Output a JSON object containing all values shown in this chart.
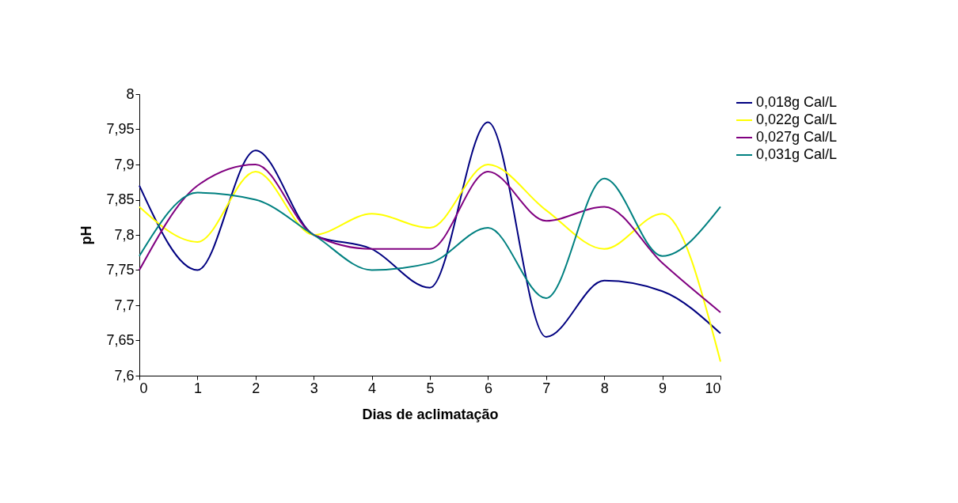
{
  "chart_data": {
    "type": "line",
    "xlabel": "Dias de aclimatação",
    "ylabel": "pH",
    "x": [
      0,
      1,
      2,
      3,
      4,
      5,
      6,
      7,
      8,
      9,
      10
    ],
    "series": [
      {
        "name": "0,018g Cal/L",
        "color": "#000080",
        "values": [
          7.87,
          7.75,
          7.92,
          7.8,
          7.78,
          7.725,
          7.96,
          7.655,
          7.735,
          7.72,
          7.66
        ]
      },
      {
        "name": "0,022g Cal/L",
        "color": "#ffff00",
        "values": [
          7.84,
          7.79,
          7.89,
          7.8,
          7.83,
          7.81,
          7.9,
          7.835,
          7.78,
          7.83,
          7.62
        ]
      },
      {
        "name": "0,027g Cal/L",
        "color": "#800080",
        "values": [
          7.75,
          7.87,
          7.9,
          7.8,
          7.78,
          7.78,
          7.89,
          7.82,
          7.84,
          7.76,
          7.69
        ]
      },
      {
        "name": "0,031g Cal/L",
        "color": "#008080",
        "values": [
          7.77,
          7.86,
          7.85,
          7.8,
          7.75,
          7.76,
          7.81,
          7.71,
          7.88,
          7.77,
          7.84
        ]
      }
    ],
    "xlim": [
      0,
      10
    ],
    "xticks": [
      0,
      1,
      2,
      3,
      4,
      5,
      6,
      7,
      8,
      9,
      10
    ],
    "ylim": [
      7.6,
      8
    ],
    "yticks": [
      {
        "value": 7.6,
        "label": "7,6"
      },
      {
        "value": 7.65,
        "label": "7,65"
      },
      {
        "value": 7.7,
        "label": "7,7"
      },
      {
        "value": 7.75,
        "label": "7,75"
      },
      {
        "value": 7.8,
        "label": "7,8"
      },
      {
        "value": 7.85,
        "label": "7,85"
      },
      {
        "value": 7.9,
        "label": "7,9"
      },
      {
        "value": 7.95,
        "label": "7,95"
      },
      8
    ],
    "grid": false,
    "legend": "right",
    "marker": "none",
    "line_style": "solid"
  }
}
